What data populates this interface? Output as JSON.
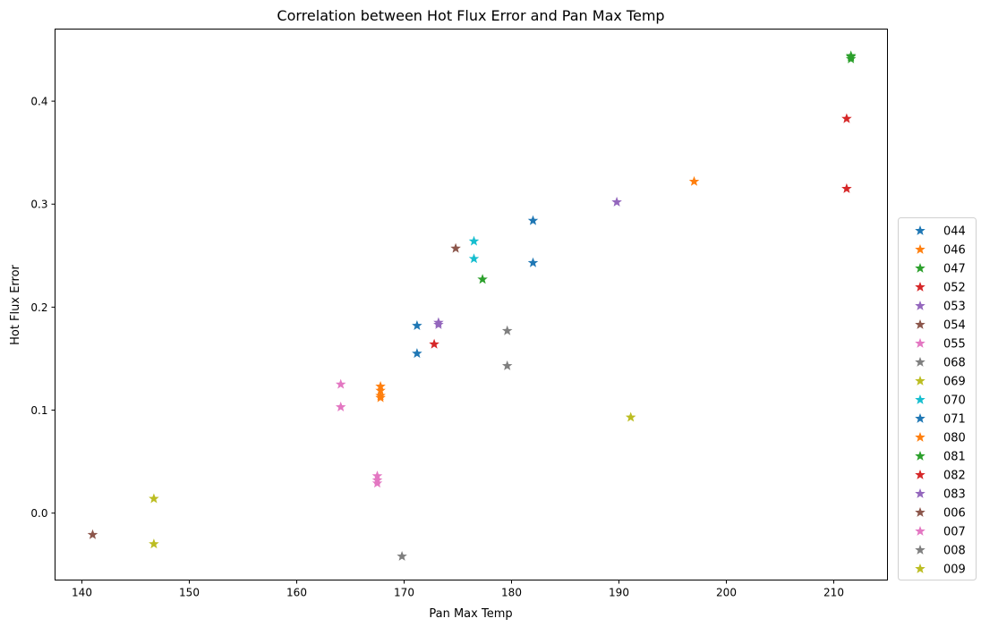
{
  "chart_data": {
    "type": "scatter",
    "title": "Correlation between Hot Flux Error and Pan Max Temp",
    "xlabel": "Pan Max Temp",
    "ylabel": "Hot Flux Error",
    "xlim": [
      137.5,
      215
    ],
    "ylim": [
      -0.065,
      0.47
    ],
    "xticks": [
      140,
      150,
      160,
      170,
      180,
      190,
      200,
      210
    ],
    "yticks": [
      0.0,
      0.1,
      0.2,
      0.3,
      0.4
    ],
    "ytick_labels": [
      "0.0",
      "0.1",
      "0.2",
      "0.3",
      "0.4"
    ],
    "grid": false,
    "legend_position": "center-right-outside",
    "marker": "star",
    "series": [
      {
        "name": "044",
        "color": "#1f77b4",
        "points": [
          [
            182.0,
            0.284
          ],
          [
            182.0,
            0.243
          ]
        ]
      },
      {
        "name": "046",
        "color": "#ff7f0e",
        "points": [
          [
            197.0,
            0.322
          ]
        ]
      },
      {
        "name": "047",
        "color": "#2ca02c",
        "points": [
          [
            211.6,
            0.444
          ],
          [
            211.6,
            0.441
          ],
          [
            211.6,
            0.443
          ]
        ]
      },
      {
        "name": "052",
        "color": "#d62728",
        "points": [
          [
            211.2,
            0.383
          ],
          [
            211.2,
            0.315
          ]
        ]
      },
      {
        "name": "053",
        "color": "#9467bd",
        "points": [
          [
            189.8,
            0.302
          ]
        ]
      },
      {
        "name": "054",
        "color": "#8c564b",
        "points": [
          [
            174.8,
            0.257
          ]
        ]
      },
      {
        "name": "055",
        "color": "#e377c2",
        "points": []
      },
      {
        "name": "068",
        "color": "#7f7f7f",
        "points": [
          [
            179.6,
            0.177
          ],
          [
            179.6,
            0.143
          ]
        ]
      },
      {
        "name": "069",
        "color": "#bcbd22",
        "points": [
          [
            191.1,
            0.093
          ]
        ]
      },
      {
        "name": "070",
        "color": "#17becf",
        "points": [
          [
            176.5,
            0.264
          ],
          [
            176.5,
            0.247
          ]
        ]
      },
      {
        "name": "071",
        "color": "#1f77b4",
        "points": [
          [
            171.2,
            0.182
          ],
          [
            171.2,
            0.155
          ]
        ]
      },
      {
        "name": "080",
        "color": "#ff7f0e",
        "points": [
          [
            167.8,
            0.123
          ],
          [
            167.8,
            0.119
          ],
          [
            167.8,
            0.114
          ],
          [
            167.8,
            0.112
          ]
        ]
      },
      {
        "name": "081",
        "color": "#2ca02c",
        "points": [
          [
            177.3,
            0.227
          ]
        ]
      },
      {
        "name": "082",
        "color": "#d62728",
        "points": [
          [
            172.8,
            0.164
          ]
        ]
      },
      {
        "name": "083",
        "color": "#9467bd",
        "points": [
          [
            173.2,
            0.185
          ],
          [
            173.2,
            0.183
          ]
        ]
      },
      {
        "name": "006",
        "color": "#8c564b",
        "points": [
          [
            141.0,
            -0.021
          ]
        ]
      },
      {
        "name": "007",
        "color": "#e377c2",
        "points": [
          [
            164.1,
            0.125
          ],
          [
            164.1,
            0.103
          ],
          [
            167.5,
            0.036
          ],
          [
            167.5,
            0.032
          ],
          [
            167.5,
            0.029
          ]
        ]
      },
      {
        "name": "008",
        "color": "#7f7f7f",
        "points": [
          [
            169.8,
            -0.042
          ]
        ]
      },
      {
        "name": "009",
        "color": "#bcbd22",
        "points": [
          [
            146.7,
            0.014
          ],
          [
            146.7,
            -0.03
          ]
        ]
      }
    ]
  }
}
